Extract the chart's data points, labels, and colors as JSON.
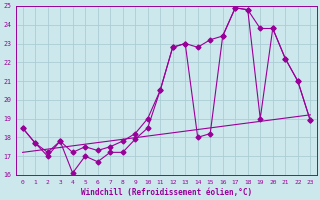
{
  "xlabel": "Windchill (Refroidissement éolien,°C)",
  "bg_color": "#cce8ec",
  "grid_color": "#aacdd4",
  "line_color": "#990099",
  "xlim": [
    -0.5,
    23.5
  ],
  "ylim": [
    16,
    25
  ],
  "xticks": [
    0,
    1,
    2,
    3,
    4,
    5,
    6,
    7,
    8,
    9,
    10,
    11,
    12,
    13,
    14,
    15,
    16,
    17,
    18,
    19,
    20,
    21,
    22,
    23
  ],
  "yticks": [
    16,
    17,
    18,
    19,
    20,
    21,
    22,
    23,
    24,
    25
  ],
  "line1_x": [
    0,
    1,
    2,
    3,
    4,
    5,
    6,
    7,
    8,
    9,
    10,
    11,
    12,
    13,
    14,
    15,
    16,
    17,
    18,
    19,
    20,
    21,
    22,
    23
  ],
  "line1_y": [
    18.5,
    17.7,
    17.0,
    17.8,
    16.1,
    17.0,
    16.7,
    17.2,
    17.2,
    17.9,
    18.5,
    20.5,
    22.8,
    23.0,
    18.0,
    18.2,
    23.4,
    24.9,
    24.8,
    19.0,
    23.8,
    22.2,
    21.0,
    18.9
  ],
  "line2_x": [
    0,
    1,
    2,
    3,
    4,
    5,
    6,
    7,
    8,
    9,
    10,
    11,
    12,
    13,
    14,
    15,
    16,
    17,
    18,
    19,
    20,
    21,
    22,
    23
  ],
  "line2_y": [
    18.5,
    17.7,
    17.2,
    17.8,
    17.2,
    17.5,
    17.3,
    17.5,
    17.8,
    18.2,
    19.0,
    20.5,
    22.8,
    23.0,
    22.8,
    23.2,
    23.4,
    24.9,
    24.8,
    23.8,
    23.8,
    22.2,
    21.0,
    18.9
  ],
  "line3_x": [
    0,
    23
  ],
  "line3_y": [
    17.2,
    19.2
  ],
  "marker": "D",
  "markersize": 2.5
}
